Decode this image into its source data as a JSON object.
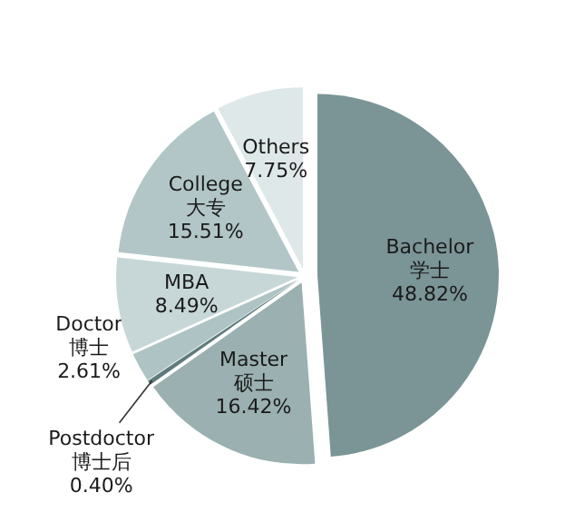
{
  "chart_data": {
    "type": "pie",
    "categories": [
      "Bachelor 学士",
      "Master 硕士",
      "Postdoctor 博士后",
      "Doctor 博士",
      "MBA",
      "College 大专",
      "Others"
    ],
    "values": [
      48.82,
      16.42,
      0.4,
      2.61,
      8.49,
      15.51,
      7.75
    ],
    "value_labels": [
      "48.82%",
      "16.42%",
      "0.40%",
      "2.61%",
      "8.49%",
      "15.51%",
      "7.75%"
    ],
    "colors": [
      "#7b9596",
      "#9ab0b1",
      "#5f7b7c",
      "#aec3c4",
      "#c7d7d8",
      "#b2c6c7",
      "#dfe8e9"
    ]
  }
}
